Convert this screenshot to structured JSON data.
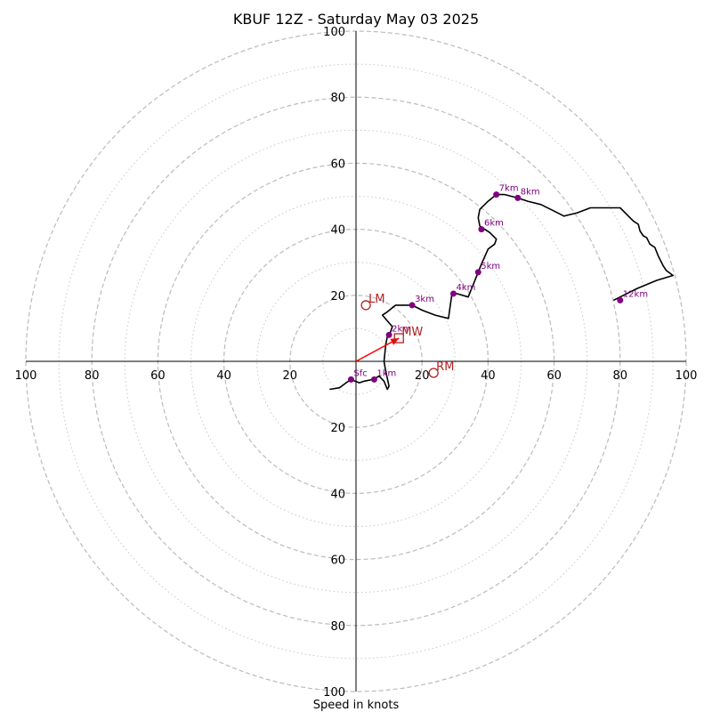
{
  "chart_data": {
    "type": "hodograph",
    "title": "KBUF 12Z - Saturday May 03 2025",
    "xlabel": "Speed in knots",
    "units": "knots",
    "range": 100,
    "ring_major": [
      20,
      40,
      60,
      80,
      100
    ],
    "ring_minor": [
      10,
      30,
      50,
      70,
      90
    ],
    "axis_ticks": [
      20,
      40,
      60,
      80,
      100
    ],
    "grid": true,
    "colors": {
      "trace": "#000000",
      "height_marker": "#800080",
      "storm_motion": "#b22222",
      "mean_wind_vector": "#ff0000",
      "grid": "#bbbbbb"
    },
    "hodograph": [
      [
        -8,
        -8.5
      ],
      [
        -5,
        -8
      ],
      [
        -3,
        -6.5
      ],
      [
        -1.5,
        -5.5
      ],
      [
        1,
        -6.5
      ],
      [
        2.5,
        -6
      ],
      [
        5,
        -5.5
      ],
      [
        7,
        -4.5
      ],
      [
        8.5,
        -6
      ],
      [
        9.5,
        -8.5
      ],
      [
        10,
        -7.5
      ],
      [
        9,
        -3
      ],
      [
        8.5,
        0
      ],
      [
        9,
        5
      ],
      [
        9.5,
        7.5
      ],
      [
        10.5,
        9
      ],
      [
        11,
        10.5
      ],
      [
        8,
        14
      ],
      [
        9.5,
        15
      ],
      [
        12,
        17
      ],
      [
        14.5,
        17
      ],
      [
        17,
        17
      ],
      [
        20,
        15.5
      ],
      [
        24,
        14
      ],
      [
        28,
        13
      ],
      [
        28.5,
        16.5
      ],
      [
        29,
        20
      ],
      [
        30.5,
        20.5
      ],
      [
        34,
        19.5
      ],
      [
        36,
        24.5
      ],
      [
        37,
        27
      ],
      [
        38,
        29.5
      ],
      [
        40,
        34
      ],
      [
        42,
        35.5
      ],
      [
        42.5,
        37
      ],
      [
        40.5,
        39
      ],
      [
        37.5,
        41
      ],
      [
        37,
        43.5
      ],
      [
        37.5,
        46
      ],
      [
        40,
        48.5
      ],
      [
        42.5,
        50.5
      ],
      [
        45,
        50.5
      ],
      [
        49,
        49.5
      ],
      [
        52,
        48.5
      ],
      [
        56,
        47.5
      ],
      [
        60,
        45.5
      ],
      [
        63,
        44
      ],
      [
        67,
        45
      ],
      [
        71,
        46.5
      ],
      [
        76,
        46.5
      ],
      [
        80,
        46.5
      ],
      [
        82,
        44.5
      ],
      [
        84,
        42.5
      ],
      [
        85.5,
        41.5
      ],
      [
        86,
        39.5
      ],
      [
        87,
        38
      ],
      [
        88,
        37.5
      ],
      [
        89,
        35.5
      ],
      [
        90.5,
        34.5
      ],
      [
        91.5,
        32
      ],
      [
        93,
        29
      ],
      [
        94,
        27.5
      ],
      [
        96,
        26
      ],
      [
        91,
        24.5
      ],
      [
        85,
        22
      ],
      [
        80,
        19.5
      ],
      [
        78,
        18.5
      ]
    ],
    "height_markers": [
      {
        "label": "Sfc",
        "u": -1.5,
        "v": -5.5
      },
      {
        "label": "1km",
        "u": 5.5,
        "v": -5.5
      },
      {
        "label": "2km",
        "u": 10,
        "v": 8
      },
      {
        "label": "3km",
        "u": 17,
        "v": 17
      },
      {
        "label": "4km",
        "u": 29.5,
        "v": 20.5
      },
      {
        "label": "5km",
        "u": 37,
        "v": 27
      },
      {
        "label": "6km",
        "u": 38,
        "v": 40
      },
      {
        "label": "7km",
        "u": 42.5,
        "v": 50.5
      },
      {
        "label": "8km",
        "u": 49,
        "v": 49.5
      },
      {
        "label": "12km",
        "u": 80,
        "v": 18.5
      }
    ],
    "storm_motion": [
      {
        "label": "LM",
        "u": 3,
        "v": 17,
        "marker": "circle"
      },
      {
        "label": "RM",
        "u": 23.5,
        "v": -3.5,
        "marker": "circle"
      },
      {
        "label": "MW",
        "u": 13,
        "v": 7,
        "marker": "square"
      }
    ],
    "mean_wind_vector": {
      "u": 13,
      "v": 7
    }
  }
}
